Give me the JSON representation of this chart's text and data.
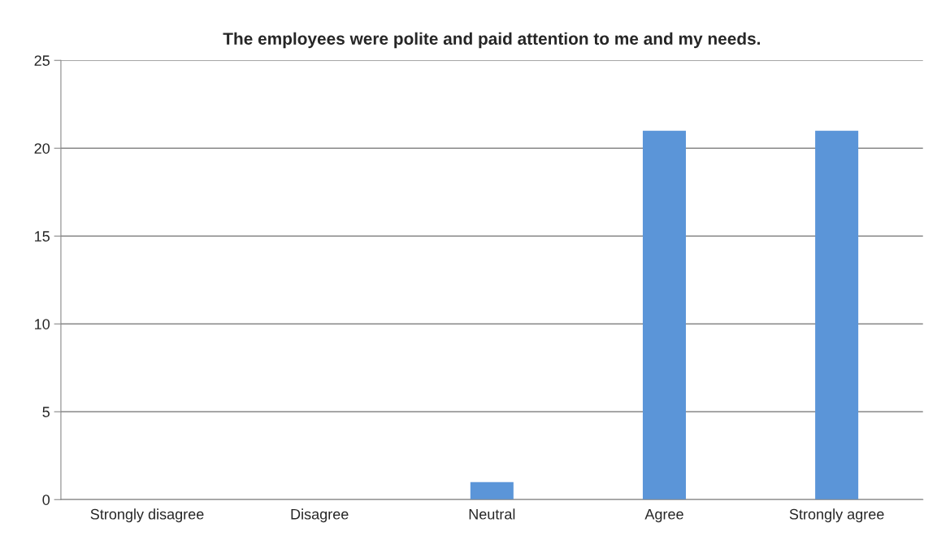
{
  "chart_data": {
    "type": "bar",
    "title": "The employees were polite and paid attention to me and my needs.",
    "categories": [
      "Strongly disagree",
      "Disagree",
      "Neutral",
      "Agree",
      "Strongly agree"
    ],
    "values": [
      0,
      0,
      1,
      21,
      21
    ],
    "color": "#5b95d8",
    "ylim": [
      0,
      25
    ],
    "yticks": [
      0,
      5,
      10,
      15,
      20,
      25
    ],
    "grid": "y"
  }
}
